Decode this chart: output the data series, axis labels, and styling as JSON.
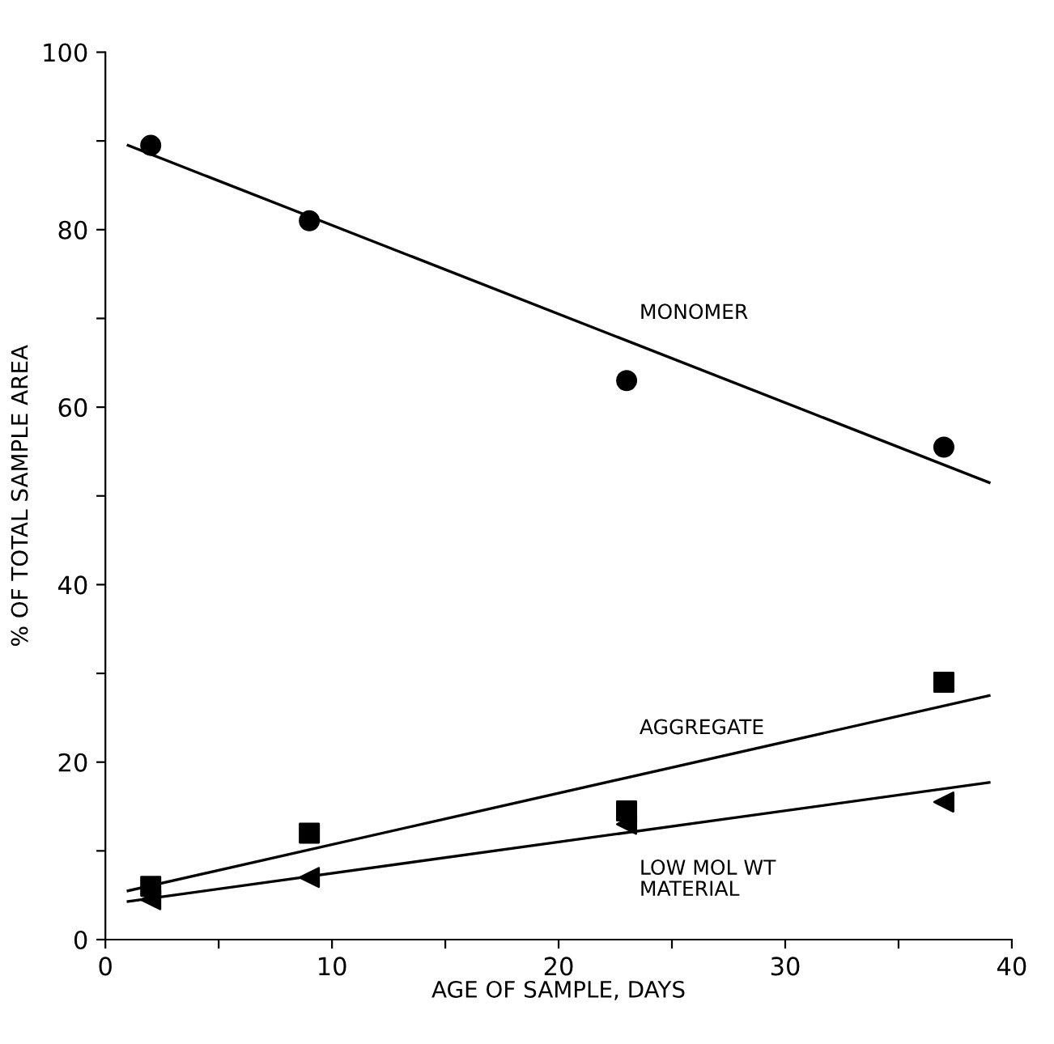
{
  "chart_data": {
    "type": "scatter",
    "xlabel": "AGE OF SAMPLE, DAYS",
    "ylabel": "% OF TOTAL SAMPLE AREA",
    "xlim": [
      0,
      40
    ],
    "ylim": [
      0,
      100
    ],
    "xticks": [
      0,
      {
        "value": 5,
        "label": null
      },
      10,
      {
        "value": 15,
        "label": null
      },
      20,
      {
        "value": 25,
        "label": null
      },
      30,
      {
        "value": 35,
        "label": null
      },
      40
    ],
    "yticks": [
      0,
      {
        "value": 10,
        "label": null
      },
      20,
      {
        "value": 30,
        "label": null
      },
      40,
      {
        "value": 50,
        "label": null
      },
      60,
      {
        "value": 70,
        "label": null
      },
      80,
      {
        "value": 90,
        "label": null
      },
      100
    ],
    "grid": false,
    "legend": false,
    "series": [
      {
        "type": "scatter",
        "marker": "circle",
        "color": "#000000",
        "x": [
          2,
          9,
          23,
          37
        ],
        "values": [
          89.5,
          81,
          63,
          55.5
        ]
      },
      {
        "type": "scatter",
        "marker": "square",
        "color": "#000000",
        "x": [
          2,
          9,
          23,
          37
        ],
        "values": [
          6,
          12,
          14.5,
          29
        ]
      },
      {
        "type": "scatter",
        "marker": "triangle",
        "color": "#000000",
        "x": [
          2,
          9,
          23,
          37
        ],
        "values": [
          4.5,
          7,
          13,
          15.5
        ]
      },
      {
        "type": "line",
        "name": "MONOMER",
        "marker": "none",
        "line_style": "solid",
        "color": "#000000",
        "x": [
          1,
          39
        ],
        "values": [
          89.5,
          51.5
        ]
      },
      {
        "type": "line",
        "name": "AGGREGATE",
        "marker": "none",
        "line_style": "solid",
        "color": "#000000",
        "x": [
          1,
          39
        ],
        "values": [
          5.5,
          27.5
        ]
      },
      {
        "type": "line",
        "name": "LOW MOL WT\nMATERIAL",
        "marker": "none",
        "line_style": "solid",
        "color": "#000000",
        "x": [
          1,
          39
        ],
        "values": [
          4.3,
          17.7
        ]
      }
    ]
  }
}
